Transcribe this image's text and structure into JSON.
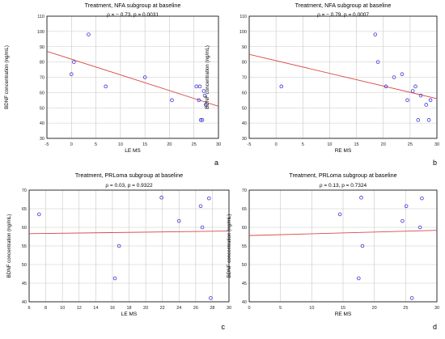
{
  "figure": {
    "panels": [
      {
        "letter": "a"
      },
      {
        "letter": "b"
      },
      {
        "letter": "c"
      },
      {
        "letter": "d"
      }
    ]
  },
  "chart_data": [
    {
      "type": "scatter",
      "title": "Treatment, NFA subgroup at baseline",
      "subtitle": "ρ = − 0.73, p = 0.0031",
      "xlabel": "LE MS",
      "ylabel": "BDNF concentration (ng/mL)",
      "xlim": [
        -5,
        30
      ],
      "ylim": [
        30,
        110
      ],
      "xticks": [
        -5,
        0,
        5,
        10,
        15,
        20,
        25,
        30
      ],
      "yticks": [
        30,
        40,
        50,
        60,
        70,
        80,
        90,
        100,
        110
      ],
      "grid": true,
      "legend": "none",
      "points": [
        [
          0,
          72
        ],
        [
          0.5,
          80
        ],
        [
          3.5,
          98
        ],
        [
          7,
          64
        ],
        [
          15,
          70
        ],
        [
          20.5,
          55
        ],
        [
          25.5,
          64
        ],
        [
          26,
          55
        ],
        [
          26.2,
          64
        ],
        [
          26.4,
          42
        ],
        [
          26.7,
          42
        ],
        [
          27,
          61
        ],
        [
          27.2,
          58
        ],
        [
          27.4,
          52
        ]
      ],
      "trendline": [
        [
          -5,
          87
        ],
        [
          30,
          51
        ]
      ],
      "colors": {
        "points": "#3b3bd6",
        "trendline": "#d94a4a",
        "grid": "#c8c8c8"
      }
    },
    {
      "type": "scatter",
      "title": "Treatment, NFA subgroup at baseline",
      "subtitle": "ρ = − 0.79, p = 0.0007",
      "xlabel": "RE MS",
      "ylabel": "BDNF concentration (ng/mL)",
      "xlim": [
        -5,
        30
      ],
      "ylim": [
        30,
        110
      ],
      "xticks": [
        -5,
        0,
        5,
        10,
        15,
        20,
        25,
        30
      ],
      "yticks": [
        30,
        40,
        50,
        60,
        70,
        80,
        90,
        100,
        110
      ],
      "grid": true,
      "legend": "none",
      "points": [
        [
          1,
          64
        ],
        [
          18.5,
          98
        ],
        [
          19,
          80
        ],
        [
          20.5,
          64
        ],
        [
          22,
          70
        ],
        [
          23.5,
          72
        ],
        [
          24.5,
          55
        ],
        [
          25.5,
          61
        ],
        [
          26,
          64
        ],
        [
          26.5,
          42
        ],
        [
          27,
          58
        ],
        [
          28,
          52
        ],
        [
          28.5,
          42
        ],
        [
          28.8,
          55
        ]
      ],
      "trendline": [
        [
          -5,
          85
        ],
        [
          30,
          56
        ]
      ],
      "colors": {
        "points": "#3b3bd6",
        "trendline": "#d94a4a",
        "grid": "#c8c8c8"
      }
    },
    {
      "type": "scatter",
      "title": "Treatment, PRLoma subgroup at baseline",
      "subtitle": "ρ = 0.03, p = 0.9322",
      "xlabel": "LE MS",
      "ylabel": "BDNF concentration (ng/mL)",
      "xlim": [
        6,
        30
      ],
      "ylim": [
        40,
        70
      ],
      "xticks": [
        6,
        8,
        10,
        12,
        14,
        16,
        18,
        20,
        22,
        24,
        26,
        28,
        30
      ],
      "yticks": [
        40,
        45,
        50,
        55,
        60,
        65,
        70
      ],
      "grid": true,
      "legend": "none",
      "points": [
        [
          7.2,
          63.5
        ],
        [
          16.3,
          46.3
        ],
        [
          16.8,
          55
        ],
        [
          21.9,
          68
        ],
        [
          24,
          61.7
        ],
        [
          26.6,
          65.7
        ],
        [
          26.8,
          60
        ],
        [
          27.6,
          67.8
        ],
        [
          27.8,
          41
        ]
      ],
      "trendline": [
        [
          6,
          58.3
        ],
        [
          30,
          59
        ]
      ],
      "colors": {
        "points": "#3b3bd6",
        "trendline": "#d94a4a",
        "grid": "#c8c8c8"
      }
    },
    {
      "type": "scatter",
      "title": "Treatment, PRLoma subgroup at baseline",
      "subtitle": "ρ = 0.13, p = 0.7324",
      "xlabel": "RE MS",
      "ylabel": "BDNF concentration (ng/mL)",
      "xlim": [
        0,
        30
      ],
      "ylim": [
        40,
        70
      ],
      "xticks": [
        0,
        5,
        10,
        15,
        20,
        25,
        30
      ],
      "yticks": [
        40,
        45,
        50,
        55,
        60,
        65,
        70
      ],
      "grid": true,
      "legend": "none",
      "points": [
        [
          14.5,
          63.5
        ],
        [
          17.5,
          46.3
        ],
        [
          17.9,
          68
        ],
        [
          18.1,
          55
        ],
        [
          24.5,
          61.7
        ],
        [
          25.1,
          65.7
        ],
        [
          26,
          41
        ],
        [
          27.3,
          60
        ],
        [
          27.6,
          67.8
        ]
      ],
      "trendline": [
        [
          0,
          57.8
        ],
        [
          30,
          59.2
        ]
      ],
      "colors": {
        "points": "#3b3bd6",
        "trendline": "#d94a4a",
        "grid": "#c8c8c8"
      }
    }
  ]
}
